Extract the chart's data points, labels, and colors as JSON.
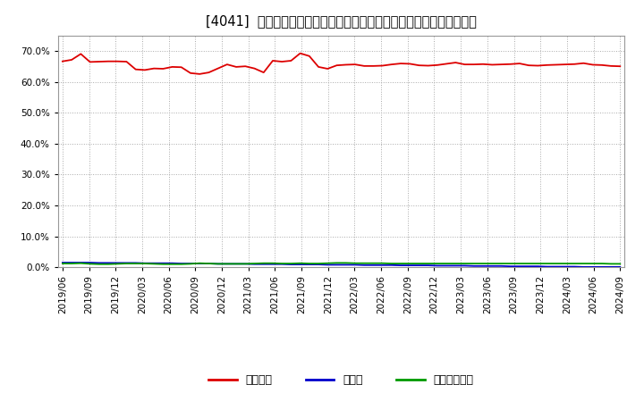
{
  "title": "[4041]  自己資本、のれん、繰延税金資産の総資産に対する比率の推移",
  "background_color": "#ffffff",
  "plot_bg_color": "#ffffff",
  "grid_color": "#aaaaaa",
  "ylim": [
    0.0,
    0.75
  ],
  "yticks": [
    0.0,
    0.1,
    0.2,
    0.3,
    0.4,
    0.5,
    0.6,
    0.7
  ],
  "series": {
    "自己資本": {
      "color": "#dd0000",
      "values": [
        0.666,
        0.671,
        0.69,
        0.664,
        0.665,
        0.666,
        0.666,
        0.665,
        0.64,
        0.638,
        0.643,
        0.642,
        0.648,
        0.647,
        0.628,
        0.625,
        0.63,
        0.643,
        0.656,
        0.648,
        0.65,
        0.643,
        0.63,
        0.668,
        0.665,
        0.668,
        0.692,
        0.683,
        0.648,
        0.642,
        0.653,
        0.655,
        0.656,
        0.651,
        0.651,
        0.652,
        0.656,
        0.659,
        0.658,
        0.653,
        0.652,
        0.654,
        0.658,
        0.662,
        0.656,
        0.656,
        0.657,
        0.655,
        0.656,
        0.657,
        0.659,
        0.653,
        0.652,
        0.654,
        0.655,
        0.656,
        0.657,
        0.66,
        0.655,
        0.654,
        0.651,
        0.65
      ]
    },
    "のれん": {
      "color": "#0000cc",
      "values": [
        0.015,
        0.015,
        0.015,
        0.015,
        0.014,
        0.014,
        0.014,
        0.014,
        0.014,
        0.013,
        0.013,
        0.013,
        0.013,
        0.012,
        0.012,
        0.012,
        0.012,
        0.011,
        0.011,
        0.011,
        0.011,
        0.01,
        0.01,
        0.01,
        0.01,
        0.009,
        0.009,
        0.009,
        0.009,
        0.008,
        0.008,
        0.008,
        0.008,
        0.007,
        0.007,
        0.007,
        0.007,
        0.006,
        0.006,
        0.006,
        0.006,
        0.005,
        0.005,
        0.005,
        0.005,
        0.004,
        0.004,
        0.004,
        0.004,
        0.003,
        0.003,
        0.003,
        0.003,
        0.002,
        0.002,
        0.002,
        0.002,
        0.001,
        0.001,
        0.001,
        0.001,
        0.001
      ]
    },
    "繰延税金資産": {
      "color": "#009900",
      "values": [
        0.012,
        0.012,
        0.013,
        0.011,
        0.01,
        0.01,
        0.011,
        0.012,
        0.012,
        0.012,
        0.011,
        0.01,
        0.01,
        0.01,
        0.011,
        0.013,
        0.012,
        0.011,
        0.011,
        0.011,
        0.011,
        0.012,
        0.013,
        0.013,
        0.012,
        0.012,
        0.013,
        0.012,
        0.012,
        0.013,
        0.014,
        0.014,
        0.013,
        0.013,
        0.013,
        0.013,
        0.012,
        0.012,
        0.012,
        0.012,
        0.012,
        0.012,
        0.012,
        0.012,
        0.012,
        0.012,
        0.012,
        0.012,
        0.012,
        0.012,
        0.012,
        0.012,
        0.012,
        0.012,
        0.012,
        0.012,
        0.012,
        0.012,
        0.012,
        0.012,
        0.011,
        0.011
      ]
    }
  },
  "x_labels": [
    "2019/06",
    "2019/09",
    "2019/12",
    "2020/03",
    "2020/06",
    "2020/09",
    "2020/12",
    "2021/03",
    "2021/06",
    "2021/09",
    "2021/12",
    "2022/03",
    "2022/06",
    "2022/09",
    "2022/12",
    "2023/03",
    "2023/06",
    "2023/09",
    "2023/12",
    "2024/03",
    "2024/06",
    "2024/09"
  ],
  "legend_labels": [
    "自己資本",
    "のれん",
    "繰延税金資産"
  ],
  "legend_colors": [
    "#dd0000",
    "#0000cc",
    "#009900"
  ],
  "title_fontsize": 10.5,
  "tick_fontsize": 7.5,
  "legend_fontsize": 9
}
